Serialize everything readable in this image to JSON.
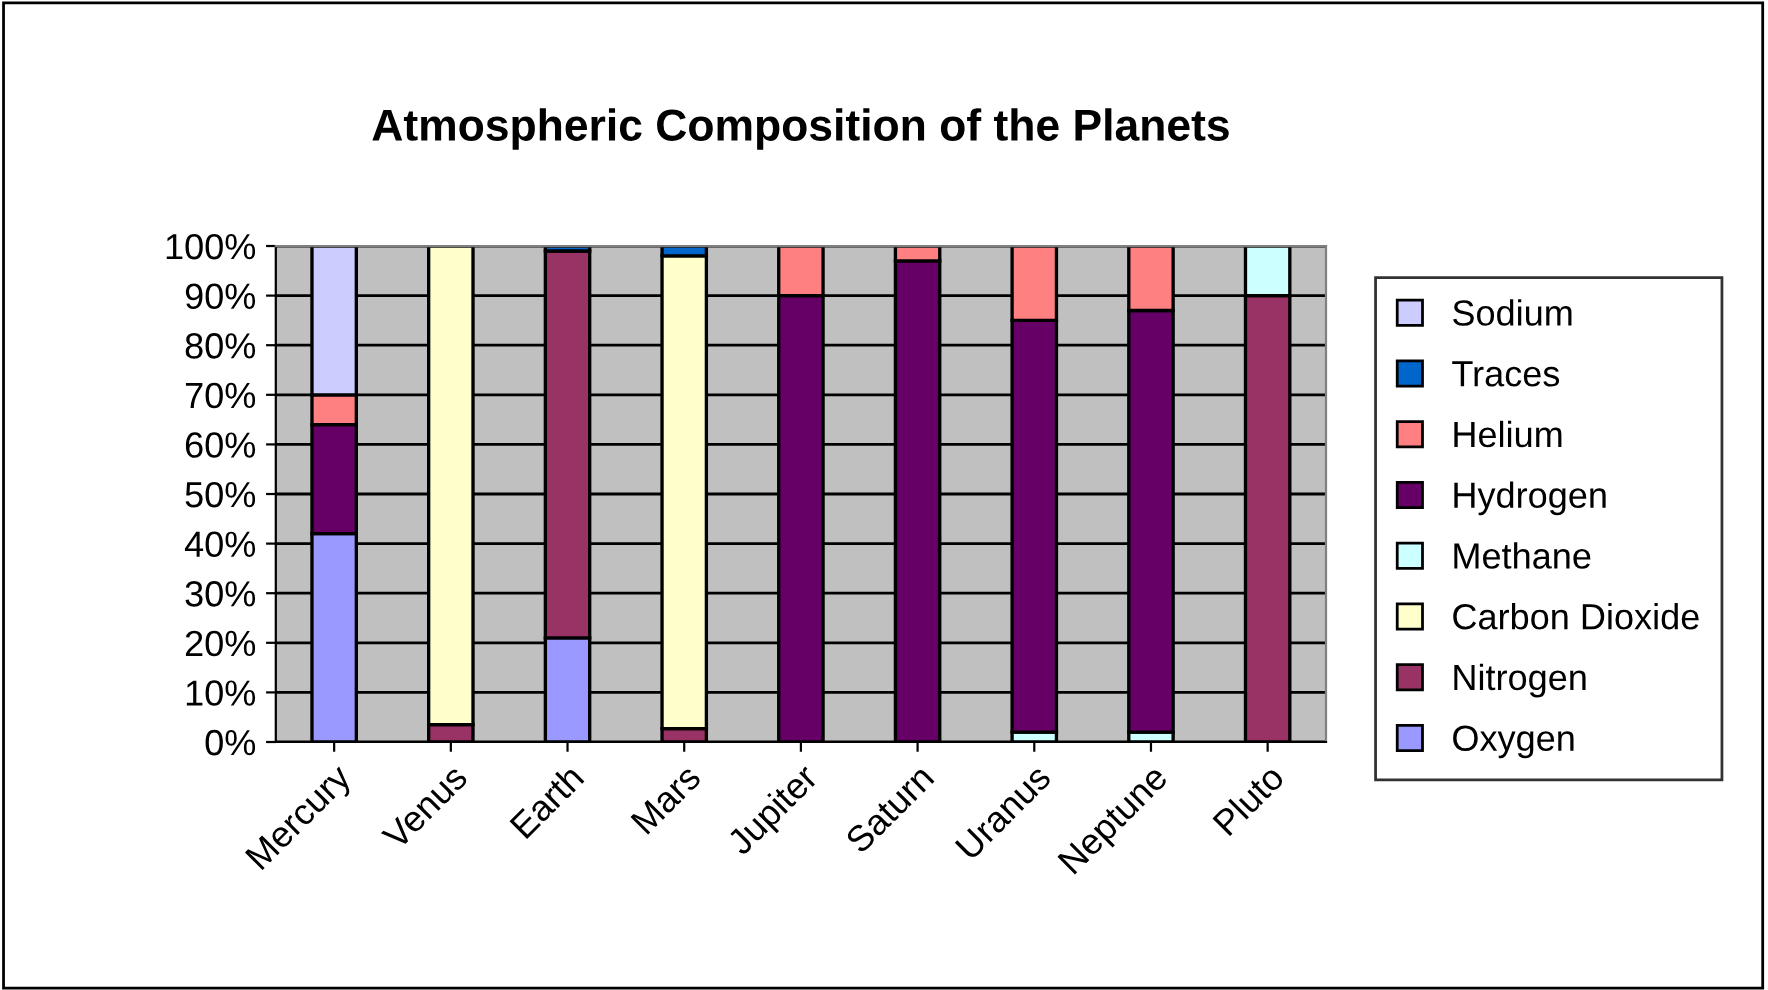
{
  "chart_data": {
    "type": "bar",
    "stacked": true,
    "title": "Atmospheric Composition of the Planets",
    "categories": [
      "Mercury",
      "Venus",
      "Earth",
      "Mars",
      "Jupiter",
      "Saturn",
      "Uranus",
      "Neptune",
      "Pluto"
    ],
    "series": [
      {
        "name": "Oxygen",
        "color": "#9999ff",
        "values": [
          42,
          null,
          21,
          null,
          null,
          null,
          null,
          null,
          null
        ]
      },
      {
        "name": "Nitrogen",
        "color": "#993366",
        "values": [
          null,
          3.5,
          78,
          2.7,
          null,
          null,
          null,
          null,
          90
        ]
      },
      {
        "name": "Carbon Dioxide",
        "color": "#ffffcc",
        "values": [
          null,
          96.5,
          null,
          95.3,
          null,
          null,
          null,
          null,
          null
        ]
      },
      {
        "name": "Methane",
        "color": "#ccffff",
        "values": [
          null,
          null,
          null,
          null,
          null,
          null,
          2,
          2,
          10
        ]
      },
      {
        "name": "Hydrogen",
        "color": "#660066",
        "values": [
          22,
          null,
          null,
          null,
          90,
          97,
          83,
          85,
          null
        ]
      },
      {
        "name": "Helium",
        "color": "#ff8080",
        "values": [
          6,
          null,
          null,
          null,
          10,
          3,
          15,
          13,
          null
        ]
      },
      {
        "name": "Traces",
        "color": "#0066cc",
        "values": [
          null,
          null,
          1,
          2,
          null,
          null,
          null,
          null,
          null
        ]
      },
      {
        "name": "Sodium",
        "color": "#ccccff",
        "values": [
          30,
          null,
          null,
          null,
          null,
          null,
          null,
          null,
          null
        ]
      }
    ],
    "ylim": [
      0,
      100
    ],
    "yticks": [
      {
        "value": 0,
        "label": "0%"
      },
      {
        "value": 10,
        "label": "10%"
      },
      {
        "value": 20,
        "label": "20%"
      },
      {
        "value": 30,
        "label": "30%"
      },
      {
        "value": 40,
        "label": "40%"
      },
      {
        "value": 50,
        "label": "50%"
      },
      {
        "value": 60,
        "label": "60%"
      },
      {
        "value": 70,
        "label": "70%"
      },
      {
        "value": 80,
        "label": "80%"
      },
      {
        "value": 90,
        "label": "90%"
      },
      {
        "value": 100,
        "label": "100%"
      }
    ],
    "grid": "y",
    "legend": "right"
  }
}
